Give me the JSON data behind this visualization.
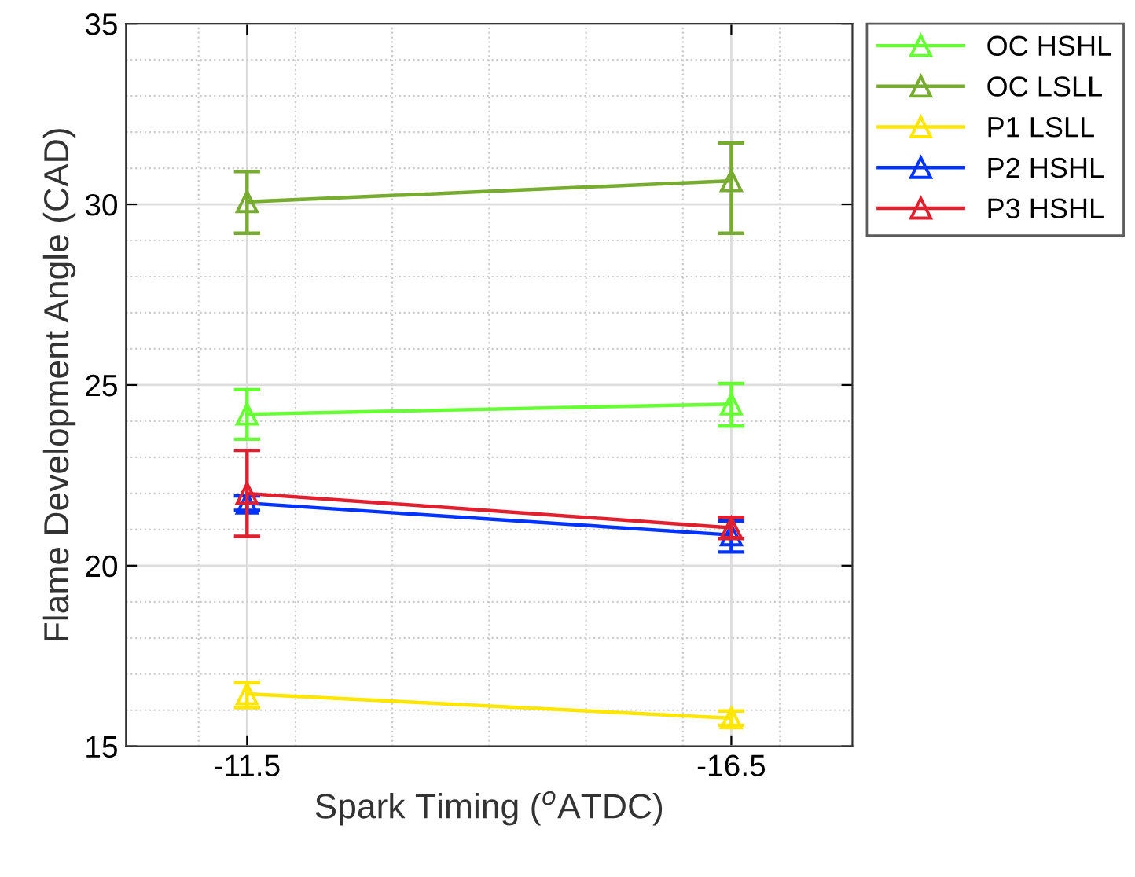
{
  "chart_data": {
    "type": "line",
    "xlabel": "Spark Timing ($^{o}$ATDC)",
    "ylabel": "Flame Development Angle (CAD)",
    "x": [
      -11.5,
      -16.5
    ],
    "xlim": [
      -10.25,
      -17.75
    ],
    "xticks": [
      -11.5,
      -16.5
    ],
    "ylim": [
      15,
      35
    ],
    "yticks": [
      15,
      20,
      25,
      30,
      35
    ],
    "grid": true,
    "legend": "top right",
    "marker": "triangle",
    "line_style": "solid",
    "series": [
      {
        "name": "OC HSHL",
        "color": "#66ff33",
        "values": [
          24.19,
          24.47
        ],
        "errors": [
          [
            23.5,
            24.87
          ],
          [
            23.86,
            25.04
          ]
        ]
      },
      {
        "name": "OC LSLL",
        "color": "#77ac30",
        "values": [
          30.07,
          30.65
        ],
        "errors": [
          [
            29.2,
            30.91
          ],
          [
            29.2,
            31.7
          ]
        ]
      },
      {
        "name": "P1 LSLL",
        "color": "#ffe600",
        "values": [
          16.45,
          15.78
        ],
        "errors": [
          [
            16.07,
            16.76
          ],
          [
            15.58,
            15.98
          ]
        ]
      },
      {
        "name": "P2 HSHL",
        "color": "#0033ff",
        "values": [
          21.73,
          20.85
        ],
        "errors": [
          [
            21.53,
            21.93
          ],
          [
            20.38,
            21.24
          ]
        ]
      },
      {
        "name": "P3 HSHL",
        "color": "#e0202f",
        "values": [
          22.0,
          21.05
        ],
        "errors": [
          [
            20.81,
            23.19
          ],
          [
            20.75,
            21.34
          ]
        ]
      }
    ]
  }
}
